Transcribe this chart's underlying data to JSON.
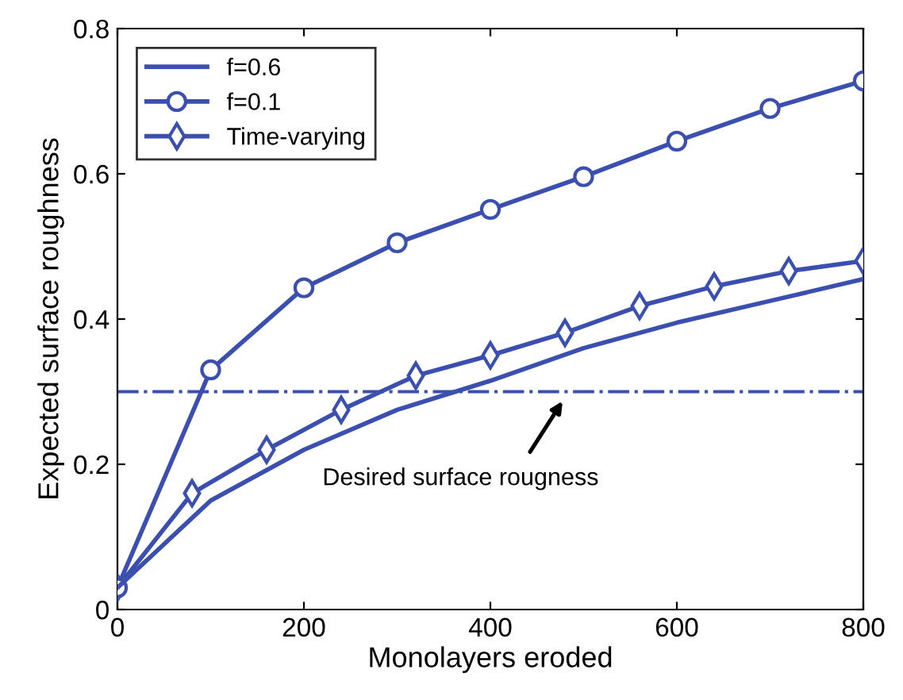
{
  "chart_data": {
    "type": "line",
    "xlabel": "Monolayers eroded",
    "ylabel": "Expected surface roughness",
    "xlim": [
      0,
      800
    ],
    "ylim": [
      0,
      0.8
    ],
    "xticks": [
      0,
      200,
      400,
      600,
      800
    ],
    "yticks": [
      0,
      0.2,
      0.4,
      0.6,
      0.8
    ],
    "grid": false,
    "legend": "top left",
    "series": [
      {
        "name": "f=0.6",
        "color": "#3b4fb0",
        "marker": "none",
        "x": [
          0,
          100,
          200,
          300,
          400,
          500,
          600,
          700,
          800
        ],
        "values": [
          0.03,
          0.15,
          0.22,
          0.275,
          0.315,
          0.36,
          0.395,
          0.425,
          0.455
        ]
      },
      {
        "name": "f=0.1",
        "color": "#3b4fb0",
        "marker": "circle",
        "x": [
          0,
          100,
          200,
          300,
          400,
          500,
          600,
          700,
          800
        ],
        "values": [
          0.03,
          0.33,
          0.443,
          0.505,
          0.551,
          0.596,
          0.645,
          0.69,
          0.728
        ]
      },
      {
        "name": "Time-varying",
        "color": "#3b4fb0",
        "marker": "diamond",
        "x": [
          0,
          80,
          160,
          240,
          320,
          400,
          480,
          560,
          640,
          720,
          800
        ],
        "values": [
          0.03,
          0.16,
          0.22,
          0.275,
          0.322,
          0.35,
          0.381,
          0.418,
          0.445,
          0.466,
          0.48
        ]
      }
    ],
    "ref_lines": [
      {
        "axis": "y",
        "value": 0.3,
        "color": "#3b4fb0",
        "line_style": "dashdot"
      }
    ],
    "annotations": [
      "Desired surface rougness"
    ]
  }
}
